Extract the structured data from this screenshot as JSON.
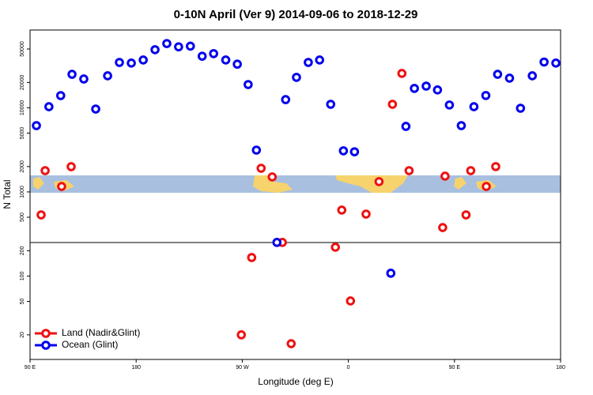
{
  "chart_data": {
    "type": "scatter",
    "title": "0-10N April (Ver 9)   2014-09-06 to 2018-12-29",
    "x_label": "Longitude (deg E)",
    "y_label": "N Total",
    "log_y": true,
    "legend": "bottom left",
    "xlim": [
      90,
      540
    ],
    "ylim": [
      10.2,
      84000
    ],
    "xticks": [
      {
        "value": 90,
        "label": "90 E"
      },
      180,
      {
        "value": 270,
        "label": "90 W"
      },
      {
        "value": 360,
        "label": "0"
      },
      {
        "value": 450,
        "label": "90 E"
      },
      {
        "value": 540,
        "label": "180"
      }
    ],
    "yticks": [
      20,
      50,
      100,
      200,
      500,
      1000,
      2000,
      5000,
      10000,
      20000,
      50000
    ],
    "reference_line": 250,
    "series": [
      {
        "name": "Land (Nadir&Glint)",
        "color": "#ee1111",
        "x": [
          99.4,
          102.8,
          116.8,
          124.9,
          269.2,
          278,
          286,
          295.4,
          304,
          311.5,
          349,
          354.4,
          361.8,
          375,
          386,
          397.4,
          405.4,
          411.5,
          440,
          442,
          459.8,
          463.8,
          477,
          485
        ],
        "values": [
          533,
          1790,
          1160,
          1995,
          20,
          166,
          1910,
          1507,
          251,
          15.7,
          220,
          608,
          50.6,
          545,
          1325,
          11000,
          25600,
          1790,
          377,
          1540,
          533,
          1790,
          1160,
          2000
        ]
      },
      {
        "name": "Ocean (Glint)",
        "color": "#0000ee",
        "x": [
          95.4,
          106,
          116,
          125.6,
          135.6,
          145.7,
          155.8,
          165.8,
          175.9,
          186,
          196,
          206,
          216,
          226,
          236,
          245.7,
          256,
          265.8,
          275,
          282,
          299.4,
          306.8,
          316,
          326,
          335.6,
          345,
          355.8,
          365.2,
          396,
          408.8,
          416,
          426,
          435.6,
          445.7,
          455.8,
          466.5,
          476.6,
          486.6,
          496.7,
          506,
          516,
          526,
          536
        ],
        "values": [
          6140,
          10300,
          13960,
          25000,
          22000,
          9660,
          24000,
          34600,
          34000,
          37000,
          49000,
          58000,
          53000,
          54000,
          41000,
          44000,
          37000,
          33000,
          18900,
          3140,
          251,
          12500,
          23000,
          34600,
          37000,
          11000,
          3080,
          3000,
          108,
          6010,
          17000,
          18100,
          16300,
          10800,
          6140,
          10300,
          14000,
          25000,
          22500,
          9880,
          24000,
          35000,
          34000
        ]
      }
    ]
  }
}
